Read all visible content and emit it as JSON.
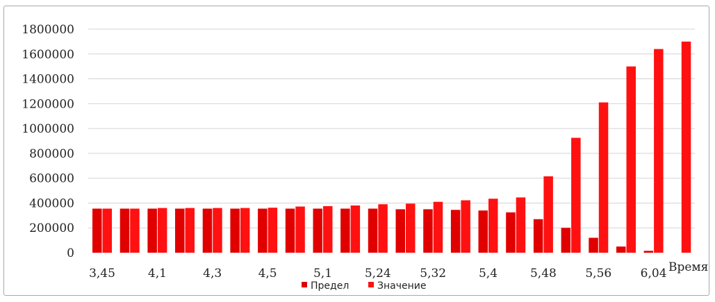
{
  "chart_data": {
    "type": "bar",
    "title": "",
    "xlabel": "Время",
    "ylabel": "",
    "ylim": [
      0,
      1800000
    ],
    "yticks": [
      "0",
      "200000",
      "400000",
      "600000",
      "800000",
      "1000000",
      "1200000",
      "1400000",
      "1600000",
      "1800000"
    ],
    "grid": true,
    "legend_position": "bottom",
    "categories": [
      "3,45",
      "",
      "4,1",
      "",
      "4,3",
      "",
      "4,5",
      "",
      "5,1",
      "",
      "5,24",
      "",
      "5,32",
      "",
      "5,4",
      "",
      "5,48",
      "",
      "5,56",
      "",
      "6,04",
      ""
    ],
    "series": [
      {
        "name": "Предел",
        "color": "#e00000",
        "values": [
          355000,
          355000,
          355000,
          355000,
          355000,
          355000,
          355000,
          355000,
          355000,
          355000,
          355000,
          350000,
          350000,
          345000,
          340000,
          325000,
          270000,
          200000,
          120000,
          50000,
          15000,
          0
        ]
      },
      {
        "name": "Значение",
        "color": "#ff1111",
        "values": [
          355000,
          355000,
          360000,
          360000,
          360000,
          360000,
          362000,
          372000,
          375000,
          380000,
          390000,
          395000,
          410000,
          422000,
          435000,
          445000,
          615000,
          925000,
          1210000,
          1500000,
          1640000,
          1700000
        ]
      }
    ]
  }
}
